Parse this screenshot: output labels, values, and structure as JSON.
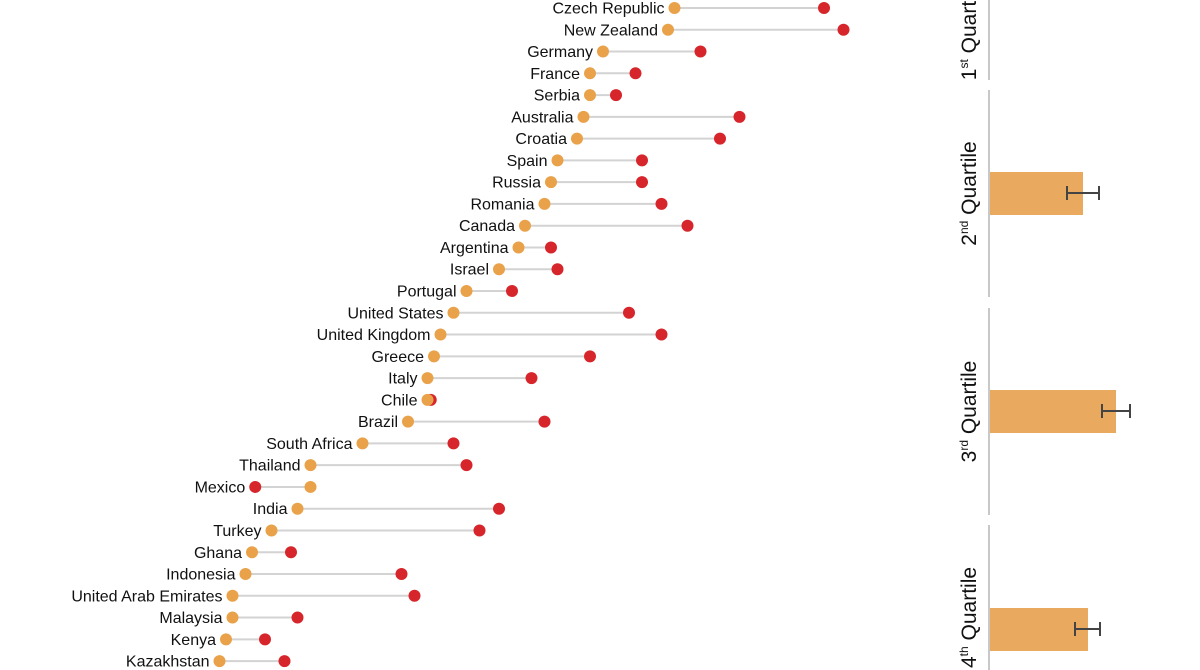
{
  "chart_data": [
    {
      "type": "dumbbell",
      "title": "",
      "xlabel": "",
      "ylabel": "",
      "xlim": [
        0,
        100
      ],
      "grid": false,
      "colors": {
        "start": "#E9A24A",
        "end": "#D7262B",
        "connector": "#D3D3D3"
      },
      "categories": [
        "Czech Republic",
        "New Zealand",
        "Germany",
        "France",
        "Serbia",
        "Australia",
        "Croatia",
        "Spain",
        "Russia",
        "Romania",
        "Canada",
        "Argentina",
        "Israel",
        "Portugal",
        "United States",
        "United Kingdom",
        "Greece",
        "Italy",
        "Chile",
        "Brazil",
        "South Africa",
        "Thailand",
        "Mexico",
        "India",
        "Turkey",
        "Ghana",
        "Indonesia",
        "United Arab Emirates",
        "Malaysia",
        "Kenya",
        "Kazakhstan"
      ],
      "series": [
        {
          "values": [
            73,
            72,
            62,
            60,
            60,
            59,
            58,
            55,
            54,
            53,
            50,
            49,
            46,
            41,
            39,
            37,
            36,
            35,
            35,
            32,
            25,
            17,
            17,
            15,
            11,
            8,
            7,
            5,
            5,
            4,
            3
          ]
        },
        {
          "values": [
            96,
            99,
            77,
            67,
            64,
            83,
            80,
            68,
            68,
            71,
            75,
            54,
            55,
            48,
            66,
            71,
            60,
            51,
            35.5,
            53,
            39,
            41,
            8.5,
            46,
            43,
            14,
            31,
            33,
            15,
            10,
            13
          ]
        }
      ]
    },
    {
      "type": "bar",
      "orientation": "horizontal",
      "xlim": [
        0,
        100
      ],
      "categories": [
        {
          "num": "1",
          "sup": "st",
          "word": "Quartile"
        },
        {
          "num": "2",
          "sup": "nd",
          "word": "Quartile"
        },
        {
          "num": "3",
          "sup": "rd",
          "word": "Quartile"
        },
        {
          "num": "4",
          "sup": "th",
          "word": "Quartile"
        }
      ],
      "values": [
        null,
        47,
        63.5,
        49.5
      ],
      "error": [
        null,
        [
          39,
          55
        ],
        [
          56.5,
          70.5
        ],
        [
          43,
          55.5
        ]
      ],
      "color": "#E9A95E"
    }
  ]
}
